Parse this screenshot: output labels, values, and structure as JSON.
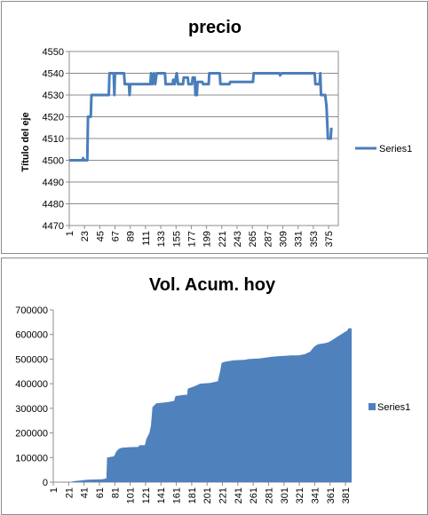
{
  "chart_data": [
    {
      "type": "line",
      "title": "precio",
      "ylabel": "Título del eje",
      "xlabel": "",
      "ylim": [
        4470,
        4550
      ],
      "yticks": [
        4470,
        4480,
        4490,
        4500,
        4510,
        4520,
        4530,
        4540,
        4550
      ],
      "xtick_labels": [
        "1",
        "23",
        "45",
        "67",
        "89",
        "111",
        "133",
        "155",
        "177",
        "199",
        "221",
        "243",
        "265",
        "287",
        "309",
        "331",
        "353",
        "375"
      ],
      "x_count": 389,
      "grid": true,
      "legend": "right",
      "color": "#4a7ebb",
      "series": [
        {
          "name": "Series1",
          "points": [
            [
              1,
              4500
            ],
            [
              20,
              4500
            ],
            [
              21,
              4501
            ],
            [
              22,
              4500
            ],
            [
              27,
              4500
            ],
            [
              28,
              4520
            ],
            [
              32,
              4520
            ],
            [
              33,
              4530
            ],
            [
              58,
              4530
            ],
            [
              59,
              4540
            ],
            [
              65,
              4540
            ],
            [
              66,
              4530
            ],
            [
              67,
              4540
            ],
            [
              80,
              4540
            ],
            [
              81,
              4535
            ],
            [
              87,
              4535
            ],
            [
              88,
              4530
            ],
            [
              89,
              4535
            ],
            [
              118,
              4535
            ],
            [
              119,
              4540
            ],
            [
              121,
              4535
            ],
            [
              123,
              4540
            ],
            [
              125,
              4535
            ],
            [
              127,
              4540
            ],
            [
              139,
              4540
            ],
            [
              140,
              4535
            ],
            [
              150,
              4535
            ],
            [
              151,
              4537
            ],
            [
              153,
              4535
            ],
            [
              156,
              4540
            ],
            [
              158,
              4535
            ],
            [
              165,
              4535
            ],
            [
              166,
              4538
            ],
            [
              172,
              4538
            ],
            [
              173,
              4535
            ],
            [
              178,
              4535
            ],
            [
              179,
              4538
            ],
            [
              182,
              4538
            ],
            [
              183,
              4530
            ],
            [
              185,
              4530
            ],
            [
              186,
              4536
            ],
            [
              193,
              4536
            ],
            [
              194,
              4535
            ],
            [
              202,
              4535
            ],
            [
              203,
              4540
            ],
            [
              218,
              4540
            ],
            [
              219,
              4535
            ],
            [
              232,
              4535
            ],
            [
              233,
              4536
            ],
            [
              266,
              4536
            ],
            [
              267,
              4540
            ],
            [
              304,
              4540
            ],
            [
              305,
              4539
            ],
            [
              307,
              4540
            ],
            [
              355,
              4540
            ],
            [
              356,
              4535
            ],
            [
              362,
              4535
            ],
            [
              363,
              4540
            ],
            [
              364,
              4530
            ],
            [
              370,
              4530
            ],
            [
              372,
              4525
            ],
            [
              374,
              4510
            ],
            [
              378,
              4510
            ],
            [
              379,
              4515
            ]
          ]
        }
      ]
    },
    {
      "type": "area",
      "title": "Vol. Acum. hoy",
      "xlabel": "",
      "ylabel": "",
      "ylim": [
        0,
        700000
      ],
      "yticks": [
        0,
        100000,
        200000,
        300000,
        400000,
        500000,
        600000,
        700000
      ],
      "xtick_labels": [
        "1",
        "21",
        "41",
        "61",
        "81",
        "101",
        "121",
        "141",
        "161",
        "181",
        "201",
        "221",
        "241",
        "261",
        "281",
        "301",
        "321",
        "341",
        "361",
        "381"
      ],
      "x_count": 389,
      "grid": false,
      "legend": "right",
      "color": "#4f81bd",
      "series": [
        {
          "name": "Series1",
          "points": [
            [
              1,
              0
            ],
            [
              25,
              0
            ],
            [
              26,
              3000
            ],
            [
              30,
              5000
            ],
            [
              35,
              6000
            ],
            [
              45,
              10000
            ],
            [
              65,
              12000
            ],
            [
              70,
              15000
            ],
            [
              71,
              100000
            ],
            [
              80,
              105000
            ],
            [
              83,
              125000
            ],
            [
              86,
              135000
            ],
            [
              90,
              140000
            ],
            [
              100,
              142000
            ],
            [
              110,
              143000
            ],
            [
              112,
              144000
            ],
            [
              113,
              150000
            ],
            [
              120,
              150000
            ],
            [
              122,
              175000
            ],
            [
              126,
              200000
            ],
            [
              128,
              230000
            ],
            [
              130,
              305000
            ],
            [
              135,
              320000
            ],
            [
              150,
              325000
            ],
            [
              158,
              330000
            ],
            [
              160,
              350000
            ],
            [
              172,
              355000
            ],
            [
              175,
              355000
            ],
            [
              176,
              380000
            ],
            [
              185,
              390000
            ],
            [
              192,
              400000
            ],
            [
              205,
              403000
            ],
            [
              215,
              410000
            ],
            [
              218,
              450000
            ],
            [
              220,
              485000
            ],
            [
              225,
              490000
            ],
            [
              236,
              495000
            ],
            [
              250,
              497000
            ],
            [
              255,
              500000
            ],
            [
              270,
              503000
            ],
            [
              275,
              505000
            ],
            [
              285,
              510000
            ],
            [
              295,
              512000
            ],
            [
              310,
              515000
            ],
            [
              320,
              515000
            ],
            [
              328,
              520000
            ],
            [
              335,
              530000
            ],
            [
              340,
              550000
            ],
            [
              345,
              560000
            ],
            [
              355,
              565000
            ],
            [
              360,
              570000
            ],
            [
              365,
              580000
            ],
            [
              370,
              590000
            ],
            [
              375,
              600000
            ],
            [
              380,
              610000
            ],
            [
              383,
              615000
            ],
            [
              385,
              625000
            ],
            [
              389,
              625000
            ]
          ]
        }
      ]
    }
  ]
}
